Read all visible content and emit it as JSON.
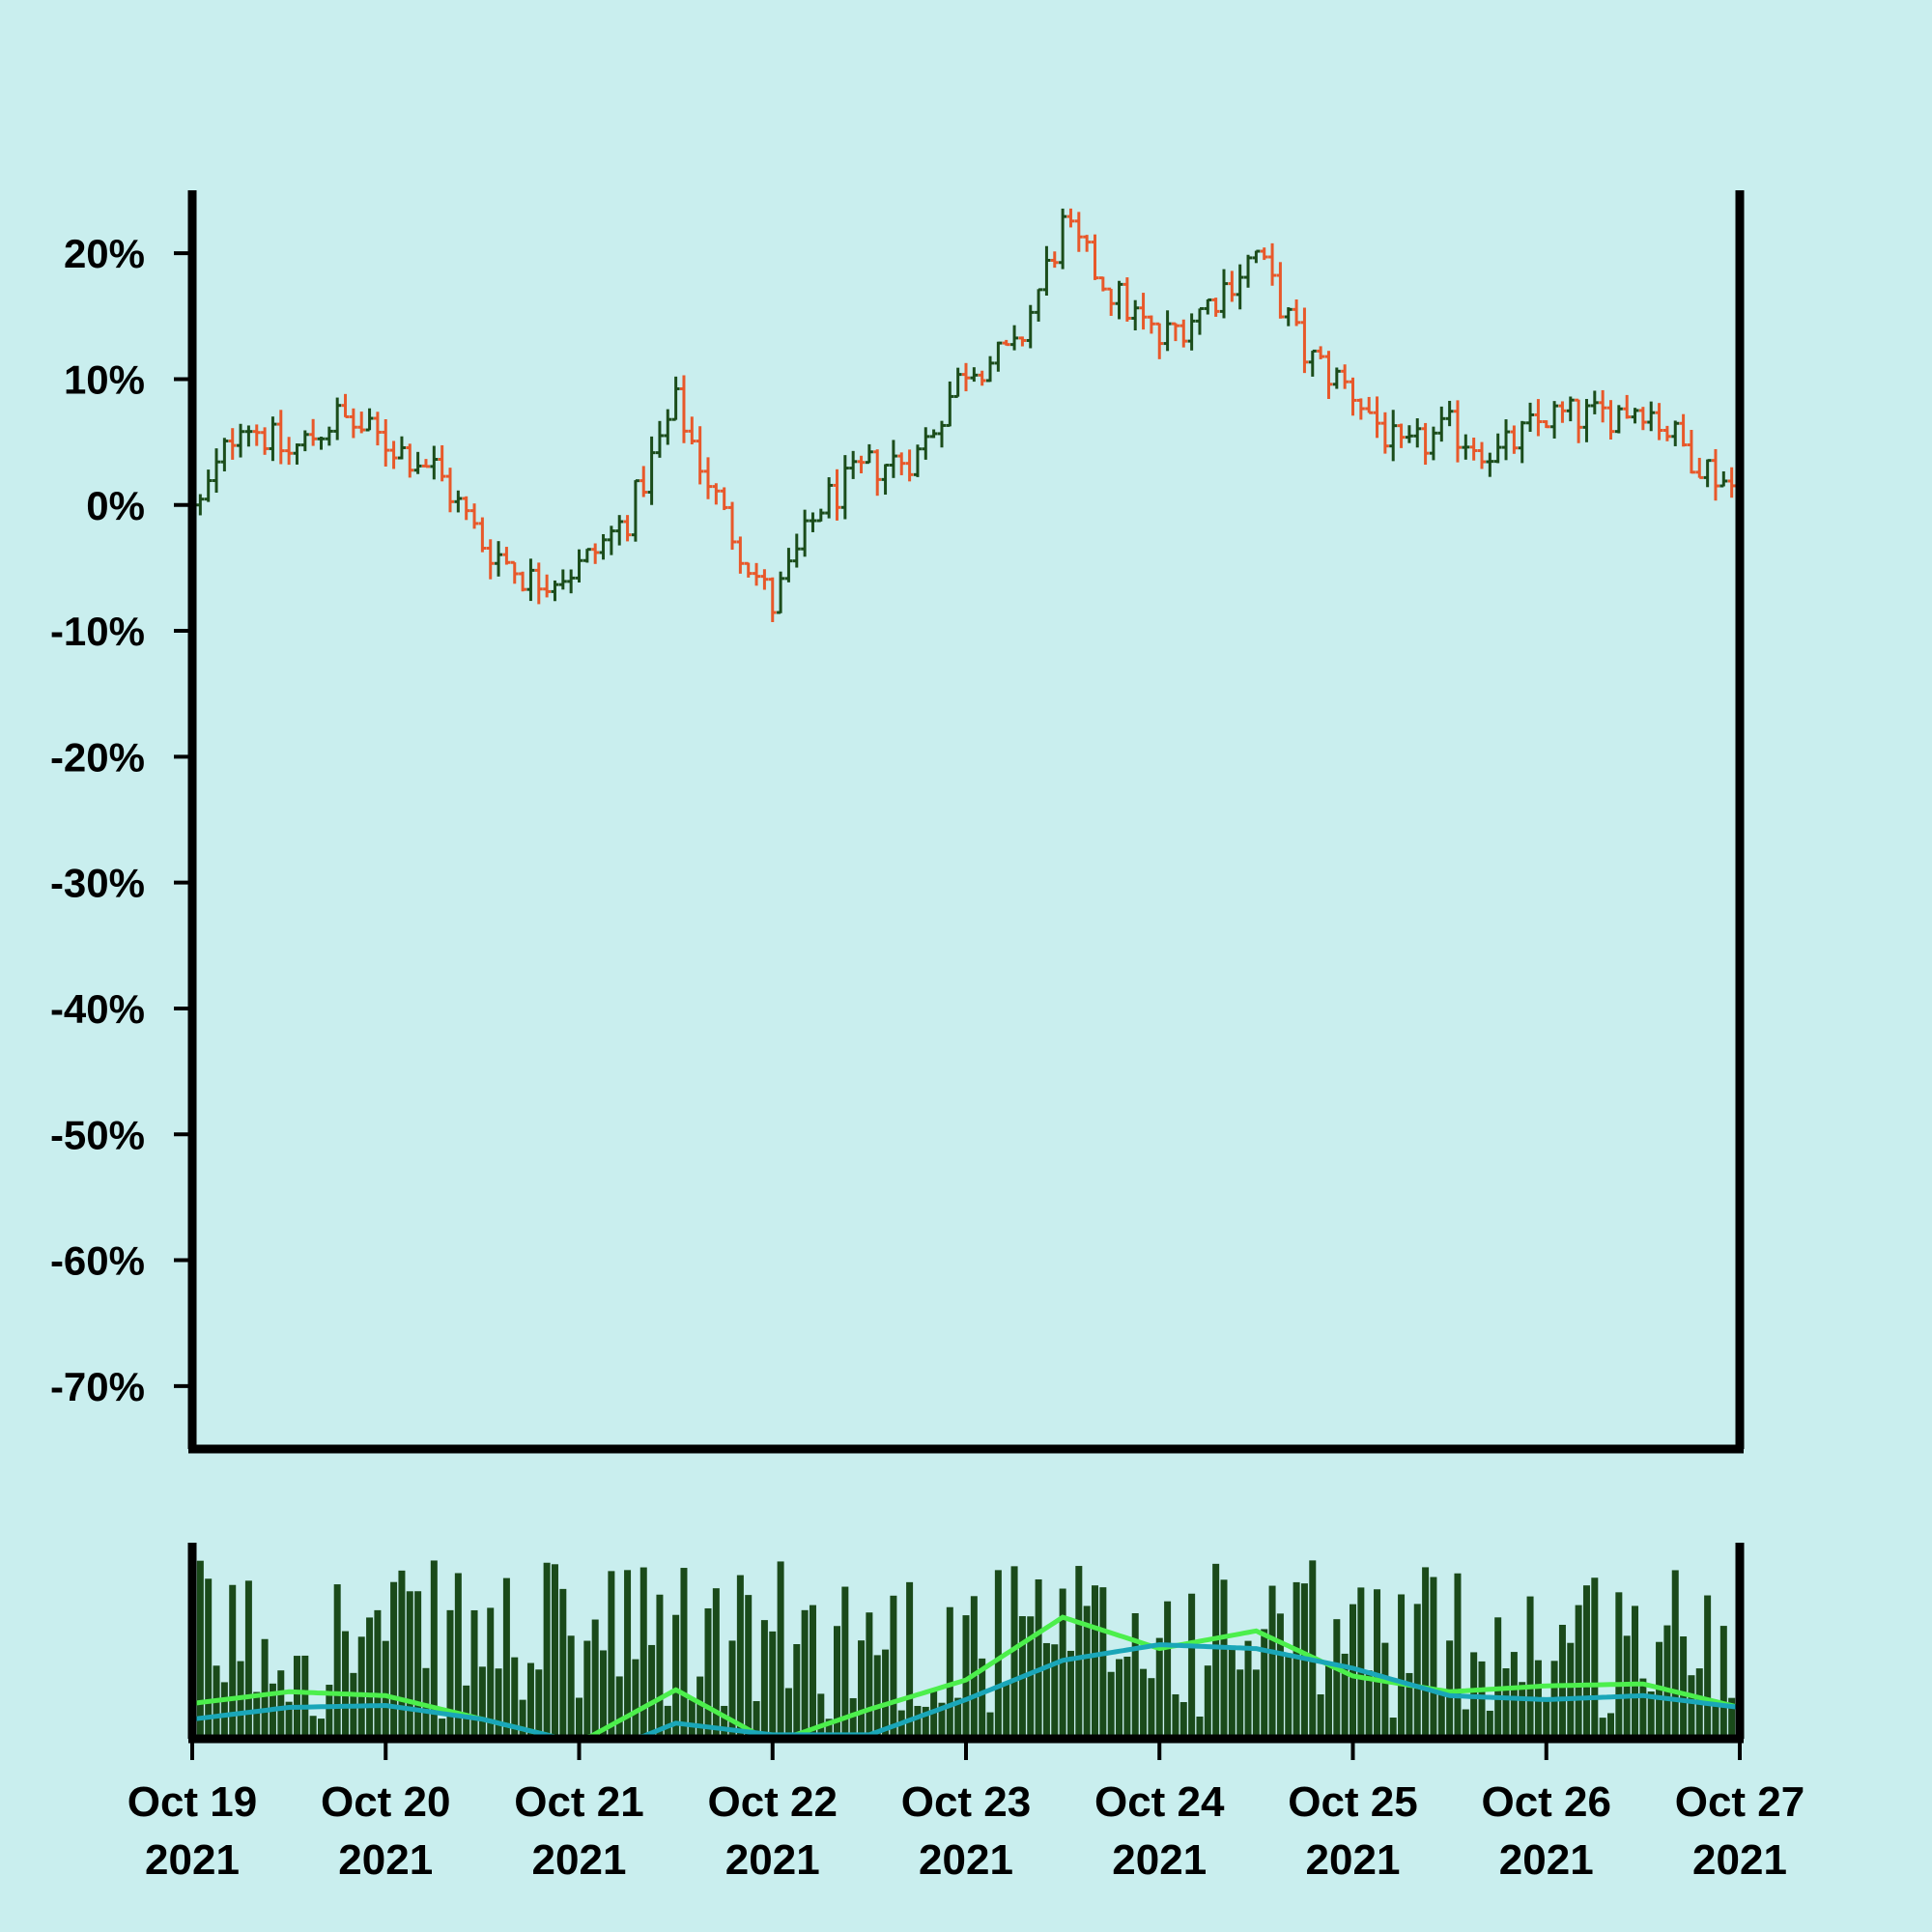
{
  "chart_data": {
    "type": "ohlc",
    "title": "",
    "xlabel": "",
    "ylabel": "",
    "y_axis": {
      "ticks": [
        20,
        10,
        0,
        -10,
        -20,
        -30,
        -40,
        -50,
        -60,
        -70
      ],
      "tick_labels": [
        "20%",
        "10%",
        "0%",
        "-10%",
        "-20%",
        "-30%",
        "-40%",
        "-50%",
        "-60%",
        "-70%"
      ],
      "ylim": [
        -75,
        25
      ]
    },
    "x_axis": {
      "xlim": [
        "2021-10-19T00:00",
        "2021-10-27T00:00"
      ],
      "ticks": [
        "2021-10-19",
        "2021-10-20",
        "2021-10-21",
        "2021-10-22",
        "2021-10-23",
        "2021-10-24",
        "2021-10-25",
        "2021-10-26",
        "2021-10-27"
      ],
      "tick_labels": [
        [
          "Oct 19",
          "2021"
        ],
        [
          "Oct 20",
          "2021"
        ],
        [
          "Oct 21",
          "2021"
        ],
        [
          "Oct 22",
          "2021"
        ],
        [
          "Oct 23",
          "2021"
        ],
        [
          "Oct 24",
          "2021"
        ],
        [
          "Oct 25",
          "2021"
        ],
        [
          "Oct 26",
          "2021"
        ],
        [
          "Oct 27",
          "2021"
        ]
      ]
    },
    "price_series": {
      "bar_interval_hours": 1,
      "start": "2021-10-19T01:00",
      "close_pct_keypoints": [
        [
          "2021-10-19T01:00",
          0
        ],
        [
          "2021-10-19T06:00",
          7
        ],
        [
          "2021-10-19T12:00",
          4
        ],
        [
          "2021-10-19T18:00",
          7
        ],
        [
          "2021-10-20T00:00",
          5
        ],
        [
          "2021-10-20T06:00",
          3
        ],
        [
          "2021-10-20T12:00",
          -3
        ],
        [
          "2021-10-20T18:00",
          -6
        ],
        [
          "2021-10-21T00:00",
          -5
        ],
        [
          "2021-10-21T06:00",
          -1
        ],
        [
          "2021-10-21T12:00",
          8
        ],
        [
          "2021-10-21T18:00",
          -1
        ],
        [
          "2021-10-22T00:00",
          -8
        ],
        [
          "2021-10-22T06:00",
          0
        ],
        [
          "2021-10-22T12:00",
          3
        ],
        [
          "2021-10-22T18:00",
          4
        ],
        [
          "2021-10-23T00:00",
          11
        ],
        [
          "2021-10-23T06:00",
          12
        ],
        [
          "2021-10-23T12:00",
          22
        ],
        [
          "2021-10-23T18:00",
          17
        ],
        [
          "2021-10-24T00:00",
          13
        ],
        [
          "2021-10-24T06:00",
          16
        ],
        [
          "2021-10-24T12:00",
          20
        ],
        [
          "2021-10-24T18:00",
          12
        ],
        [
          "2021-10-25T00:00",
          9
        ],
        [
          "2021-10-25T06:00",
          4
        ],
        [
          "2021-10-25T12:00",
          6
        ],
        [
          "2021-10-25T18:00",
          4
        ],
        [
          "2021-10-26T00:00",
          7
        ],
        [
          "2021-10-26T06:00",
          7
        ],
        [
          "2021-10-26T12:00",
          8
        ],
        [
          "2021-10-26T18:00",
          4
        ],
        [
          "2021-10-27T00:00",
          1
        ]
      ]
    },
    "volume_panel": {
      "moving_averages": [
        {
          "color": "#4cef4c",
          "keypoints": [
            [
              "2021-10-19T00:00",
              0.18
            ],
            [
              "2021-10-19T12:00",
              0.24
            ],
            [
              "2021-10-20T00:00",
              0.22
            ],
            [
              "2021-10-20T12:00",
              0.1
            ],
            [
              "2021-10-21T00:00",
              -0.02
            ],
            [
              "2021-10-21T12:00",
              0.25
            ],
            [
              "2021-10-22T00:00",
              -0.02
            ],
            [
              "2021-10-22T12:00",
              0.15
            ],
            [
              "2021-10-23T00:00",
              0.3
            ],
            [
              "2021-10-23T12:00",
              0.62
            ],
            [
              "2021-10-24T00:00",
              0.46
            ],
            [
              "2021-10-24T12:00",
              0.55
            ],
            [
              "2021-10-25T00:00",
              0.32
            ],
            [
              "2021-10-25T12:00",
              0.24
            ],
            [
              "2021-10-26T00:00",
              0.27
            ],
            [
              "2021-10-26T12:00",
              0.28
            ],
            [
              "2021-10-27T00:00",
              0.16
            ]
          ]
        },
        {
          "color": "#1aa6b8",
          "keypoints": [
            [
              "2021-10-19T00:00",
              0.1
            ],
            [
              "2021-10-19T12:00",
              0.16
            ],
            [
              "2021-10-20T00:00",
              0.17
            ],
            [
              "2021-10-20T12:00",
              0.1
            ],
            [
              "2021-10-21T00:00",
              -0.02
            ],
            [
              "2021-10-21T06:00",
              -0.02
            ],
            [
              "2021-10-21T12:00",
              0.08
            ],
            [
              "2021-10-22T00:00",
              0.02
            ],
            [
              "2021-10-22T12:00",
              0.02
            ],
            [
              "2021-10-23T00:00",
              0.2
            ],
            [
              "2021-10-23T12:00",
              0.4
            ],
            [
              "2021-10-24T00:00",
              0.48
            ],
            [
              "2021-10-24T12:00",
              0.46
            ],
            [
              "2021-10-25T00:00",
              0.36
            ],
            [
              "2021-10-25T12:00",
              0.22
            ],
            [
              "2021-10-26T00:00",
              0.2
            ],
            [
              "2021-10-26T12:00",
              0.22
            ],
            [
              "2021-10-27T00:00",
              0.16
            ]
          ]
        }
      ]
    },
    "colors": {
      "background": "#c9eeee",
      "up": "#1b4d1b",
      "down": "#e8582a",
      "volume": "#1a4a1a",
      "axis": "#000000"
    }
  }
}
